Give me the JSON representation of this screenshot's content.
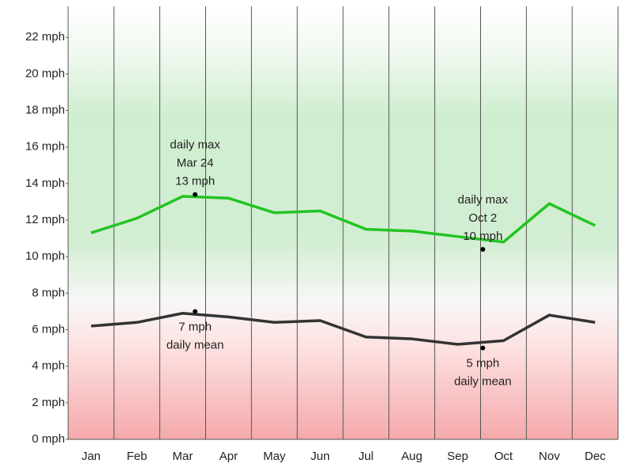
{
  "chart_data": {
    "type": "line",
    "categories": [
      "Jan",
      "Feb",
      "Mar",
      "Apr",
      "May",
      "Jun",
      "Jul",
      "Aug",
      "Sep",
      "Oct",
      "Nov",
      "Dec"
    ],
    "series": [
      {
        "name": "daily max",
        "color": "#22c422",
        "values": [
          11.3,
          12.1,
          13.3,
          13.2,
          12.4,
          12.5,
          11.5,
          11.4,
          11.1,
          10.8,
          12.9,
          11.7
        ]
      },
      {
        "name": "daily mean",
        "color": "#333333",
        "values": [
          6.2,
          6.4,
          6.9,
          6.7,
          6.4,
          6.5,
          5.6,
          5.5,
          5.2,
          5.4,
          6.8,
          6.4
        ]
      }
    ],
    "ylim": [
      0,
      23.7
    ],
    "yticks": [
      {
        "value": 0,
        "label": "0 mph"
      },
      {
        "value": 2,
        "label": "2 mph"
      },
      {
        "value": 4,
        "label": "4 mph"
      },
      {
        "value": 6,
        "label": "6 mph"
      },
      {
        "value": 8,
        "label": "8 mph"
      },
      {
        "value": 10,
        "label": "10 mph"
      },
      {
        "value": 12,
        "label": "12 mph"
      },
      {
        "value": 14,
        "label": "14 mph"
      },
      {
        "value": 16,
        "label": "16 mph"
      },
      {
        "value": 18,
        "label": "18 mph"
      },
      {
        "value": 20,
        "label": "20 mph"
      },
      {
        "value": 22,
        "label": "22 mph"
      }
    ],
    "annotations": [
      {
        "max_text": [
          "daily max",
          "Mar 24",
          "13 mph"
        ],
        "max_value": 13.4,
        "mean_text": [
          "7 mph",
          "daily mean"
        ],
        "mean_value": 7.0
      },
      {
        "max_text": [
          "daily max",
          "Oct 2",
          "10 mph"
        ],
        "max_value": 10.4,
        "mean_text": [
          "5 mph",
          "daily mean"
        ],
        "mean_value": 5.0
      }
    ]
  }
}
